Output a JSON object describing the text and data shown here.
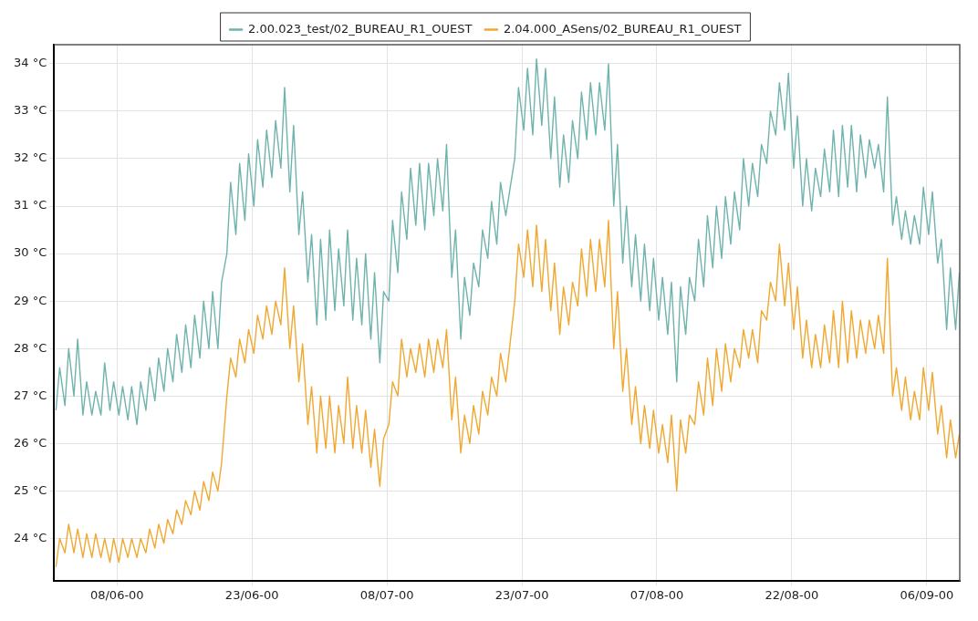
{
  "chart_data": {
    "type": "line",
    "legend": "top",
    "grid": true,
    "marker": "none",
    "line_style": "solid",
    "xlim": [
      "2000-06-01T00:00",
      "2000-09-09T16:00"
    ],
    "xticks": [
      {
        "value": "2000-06-08",
        "label": "08/06-00"
      },
      {
        "value": "2000-06-23",
        "label": "23/06-00"
      },
      {
        "value": "2000-07-08",
        "label": "08/07-00"
      },
      {
        "value": "2000-07-23",
        "label": "23/07-00"
      },
      {
        "value": "2000-08-07",
        "label": "07/08-00"
      },
      {
        "value": "2000-08-22",
        "label": "22/08-00"
      },
      {
        "value": "2000-09-06",
        "label": "06/09-00"
      }
    ],
    "ylim": [
      23.1,
      34.4
    ],
    "yticks": [
      {
        "value": 24,
        "label": "24 °C"
      },
      {
        "value": 25,
        "label": "25 °C"
      },
      {
        "value": 26,
        "label": "26 °C"
      },
      {
        "value": 27,
        "label": "27 °C"
      },
      {
        "value": 28,
        "label": "28 °C"
      },
      {
        "value": 29,
        "label": "29 °C"
      },
      {
        "value": 30,
        "label": "30 °C"
      },
      {
        "value": 31,
        "label": "31 °C"
      },
      {
        "value": 32,
        "label": "32 °C"
      },
      {
        "value": 33,
        "label": "33 °C"
      },
      {
        "value": 34,
        "label": "34 °C"
      }
    ],
    "x": [
      "2000-06-01T05:00",
      "2000-06-01T15:00",
      "2000-06-02T05:00",
      "2000-06-02T15:00",
      "2000-06-03T05:00",
      "2000-06-03T15:00",
      "2000-06-04T05:00",
      "2000-06-04T15:00",
      "2000-06-05T05:00",
      "2000-06-05T15:00",
      "2000-06-06T05:00",
      "2000-06-06T15:00",
      "2000-06-07T05:00",
      "2000-06-07T15:00",
      "2000-06-08T05:00",
      "2000-06-08T15:00",
      "2000-06-09T05:00",
      "2000-06-09T15:00",
      "2000-06-10T05:00",
      "2000-06-10T15:00",
      "2000-06-11T05:00",
      "2000-06-11T15:00",
      "2000-06-12T05:00",
      "2000-06-12T15:00",
      "2000-06-13T05:00",
      "2000-06-13T15:00",
      "2000-06-14T05:00",
      "2000-06-14T15:00",
      "2000-06-15T05:00",
      "2000-06-15T15:00",
      "2000-06-16T05:00",
      "2000-06-16T15:00",
      "2000-06-17T05:00",
      "2000-06-17T15:00",
      "2000-06-18T05:00",
      "2000-06-18T15:00",
      "2000-06-19T05:00",
      "2000-06-19T15:00",
      "2000-06-20T05:00",
      "2000-06-20T15:00",
      "2000-06-21T05:00",
      "2000-06-21T15:00",
      "2000-06-22T05:00",
      "2000-06-22T15:00",
      "2000-06-23T05:00",
      "2000-06-23T15:00",
      "2000-06-24T05:00",
      "2000-06-24T15:00",
      "2000-06-25T05:00",
      "2000-06-25T15:00",
      "2000-06-26T05:00",
      "2000-06-26T15:00",
      "2000-06-27T05:00",
      "2000-06-27T15:00",
      "2000-06-28T05:00",
      "2000-06-28T15:00",
      "2000-06-29T05:00",
      "2000-06-29T15:00",
      "2000-06-30T05:00",
      "2000-06-30T15:00",
      "2000-07-01T05:00",
      "2000-07-01T15:00",
      "2000-07-02T05:00",
      "2000-07-02T15:00",
      "2000-07-03T05:00",
      "2000-07-03T15:00",
      "2000-07-04T05:00",
      "2000-07-04T15:00",
      "2000-07-05T05:00",
      "2000-07-05T15:00",
      "2000-07-06T05:00",
      "2000-07-06T15:00",
      "2000-07-07T05:00",
      "2000-07-07T15:00",
      "2000-07-08T05:00",
      "2000-07-08T15:00",
      "2000-07-09T05:00",
      "2000-07-09T15:00",
      "2000-07-10T05:00",
      "2000-07-10T15:00",
      "2000-07-11T05:00",
      "2000-07-11T15:00",
      "2000-07-12T05:00",
      "2000-07-12T15:00",
      "2000-07-13T05:00",
      "2000-07-13T15:00",
      "2000-07-14T05:00",
      "2000-07-14T15:00",
      "2000-07-15T05:00",
      "2000-07-15T15:00",
      "2000-07-16T05:00",
      "2000-07-16T15:00",
      "2000-07-17T05:00",
      "2000-07-17T15:00",
      "2000-07-18T05:00",
      "2000-07-18T15:00",
      "2000-07-19T05:00",
      "2000-07-19T15:00",
      "2000-07-20T05:00",
      "2000-07-20T15:00",
      "2000-07-21T05:00",
      "2000-07-21T15:00",
      "2000-07-22T05:00",
      "2000-07-22T15:00",
      "2000-07-23T05:00",
      "2000-07-23T15:00",
      "2000-07-24T05:00",
      "2000-07-24T15:00",
      "2000-07-25T05:00",
      "2000-07-25T15:00",
      "2000-07-26T05:00",
      "2000-07-26T15:00",
      "2000-07-27T05:00",
      "2000-07-27T15:00",
      "2000-07-28T05:00",
      "2000-07-28T15:00",
      "2000-07-29T05:00",
      "2000-07-29T15:00",
      "2000-07-30T05:00",
      "2000-07-30T15:00",
      "2000-07-31T05:00",
      "2000-07-31T15:00",
      "2000-08-01T05:00",
      "2000-08-01T15:00",
      "2000-08-02T05:00",
      "2000-08-02T15:00",
      "2000-08-03T05:00",
      "2000-08-03T15:00",
      "2000-08-04T05:00",
      "2000-08-04T15:00",
      "2000-08-05T05:00",
      "2000-08-05T15:00",
      "2000-08-06T05:00",
      "2000-08-06T15:00",
      "2000-08-07T05:00",
      "2000-08-07T15:00",
      "2000-08-08T05:00",
      "2000-08-08T15:00",
      "2000-08-09T05:00",
      "2000-08-09T15:00",
      "2000-08-10T05:00",
      "2000-08-10T15:00",
      "2000-08-11T05:00",
      "2000-08-11T15:00",
      "2000-08-12T05:00",
      "2000-08-12T15:00",
      "2000-08-13T05:00",
      "2000-08-13T15:00",
      "2000-08-14T05:00",
      "2000-08-14T15:00",
      "2000-08-15T05:00",
      "2000-08-15T15:00",
      "2000-08-16T05:00",
      "2000-08-16T15:00",
      "2000-08-17T05:00",
      "2000-08-17T15:00",
      "2000-08-18T05:00",
      "2000-08-18T15:00",
      "2000-08-19T05:00",
      "2000-08-19T15:00",
      "2000-08-20T05:00",
      "2000-08-20T15:00",
      "2000-08-21T05:00",
      "2000-08-21T15:00",
      "2000-08-22T05:00",
      "2000-08-22T15:00",
      "2000-08-23T05:00",
      "2000-08-23T15:00",
      "2000-08-24T05:00",
      "2000-08-24T15:00",
      "2000-08-25T05:00",
      "2000-08-25T15:00",
      "2000-08-26T05:00",
      "2000-08-26T15:00",
      "2000-08-27T05:00",
      "2000-08-27T15:00",
      "2000-08-28T05:00",
      "2000-08-28T15:00",
      "2000-08-29T05:00",
      "2000-08-29T15:00",
      "2000-08-30T05:00",
      "2000-08-30T15:00",
      "2000-08-31T05:00",
      "2000-08-31T15:00",
      "2000-09-01T05:00",
      "2000-09-01T15:00",
      "2000-09-02T05:00",
      "2000-09-02T15:00",
      "2000-09-03T05:00",
      "2000-09-03T15:00",
      "2000-09-04T05:00",
      "2000-09-04T15:00",
      "2000-09-05T05:00",
      "2000-09-05T15:00",
      "2000-09-06T05:00",
      "2000-09-06T15:00",
      "2000-09-07T05:00",
      "2000-09-07T15:00",
      "2000-09-08T05:00",
      "2000-09-08T15:00",
      "2000-09-09T05:00",
      "2000-09-09T15:00"
    ],
    "series": [
      {
        "name": "2.00.023_test/02_BUREAU_R1_OUEST",
        "color": "#6fb3ad",
        "values": [
          26.7,
          27.6,
          26.8,
          28.0,
          27.0,
          28.2,
          26.6,
          27.3,
          26.6,
          27.1,
          26.6,
          27.7,
          26.7,
          27.3,
          26.6,
          27.2,
          26.5,
          27.2,
          26.4,
          27.3,
          26.7,
          27.6,
          26.9,
          27.8,
          27.1,
          28.0,
          27.3,
          28.3,
          27.5,
          28.5,
          27.6,
          28.7,
          27.8,
          29.0,
          28.0,
          29.2,
          28.0,
          29.4,
          30.0,
          31.5,
          30.4,
          31.9,
          30.7,
          32.1,
          31.0,
          32.4,
          31.4,
          32.6,
          31.6,
          32.8,
          31.8,
          33.5,
          31.3,
          32.7,
          30.4,
          31.3,
          29.4,
          30.4,
          28.5,
          30.3,
          28.6,
          30.5,
          28.8,
          30.1,
          28.9,
          30.5,
          28.6,
          29.9,
          28.5,
          30.0,
          28.2,
          29.6,
          27.7,
          29.2,
          29.0,
          30.7,
          29.6,
          31.3,
          30.3,
          31.8,
          30.6,
          31.9,
          30.5,
          31.9,
          30.8,
          32.0,
          30.9,
          32.3,
          29.5,
          30.5,
          28.2,
          29.5,
          28.7,
          29.8,
          29.3,
          30.5,
          29.9,
          31.1,
          30.2,
          31.5,
          30.8,
          31.3,
          32.0,
          33.5,
          32.6,
          33.9,
          32.5,
          34.1,
          32.7,
          33.9,
          32.0,
          33.3,
          31.4,
          32.5,
          31.5,
          32.8,
          32.0,
          33.4,
          32.4,
          33.6,
          32.5,
          33.6,
          32.6,
          34.0,
          31.0,
          32.3,
          29.8,
          31.0,
          29.3,
          30.4,
          29.0,
          30.2,
          28.8,
          29.9,
          28.6,
          29.5,
          28.3,
          29.4,
          27.3,
          29.3,
          28.3,
          29.5,
          29.0,
          30.3,
          29.3,
          30.8,
          29.7,
          31.0,
          29.9,
          31.2,
          30.2,
          31.3,
          30.5,
          32.0,
          31.0,
          31.9,
          31.2,
          32.3,
          31.9,
          33.0,
          32.5,
          33.6,
          32.6,
          33.8,
          31.8,
          32.9,
          31.0,
          32.0,
          30.9,
          31.8,
          31.2,
          32.2,
          31.3,
          32.6,
          31.2,
          32.7,
          31.4,
          32.7,
          31.3,
          32.5,
          31.6,
          32.4,
          31.8,
          32.3,
          31.3,
          33.3,
          30.6,
          31.2,
          30.3,
          30.9,
          30.2,
          30.8,
          30.2,
          31.4,
          30.4,
          31.3,
          29.8,
          30.3,
          28.4,
          29.7,
          28.4,
          29.6
        ]
      },
      {
        "name": "2.04.000_ASens/02_BUREAU_R1_OUEST",
        "color": "#f0a830",
        "values": [
          23.4,
          24.0,
          23.7,
          24.3,
          23.7,
          24.2,
          23.6,
          24.1,
          23.6,
          24.1,
          23.6,
          24.0,
          23.5,
          24.0,
          23.5,
          24.0,
          23.6,
          24.0,
          23.6,
          24.0,
          23.7,
          24.2,
          23.8,
          24.3,
          23.9,
          24.4,
          24.1,
          24.6,
          24.3,
          24.8,
          24.5,
          25.0,
          24.6,
          25.2,
          24.8,
          25.4,
          25.0,
          25.6,
          27.0,
          27.8,
          27.4,
          28.2,
          27.7,
          28.4,
          27.9,
          28.7,
          28.2,
          28.9,
          28.3,
          29.0,
          28.5,
          29.7,
          28.0,
          28.9,
          27.3,
          28.1,
          26.4,
          27.2,
          25.8,
          27.0,
          25.9,
          27.0,
          25.8,
          26.8,
          26.0,
          27.4,
          25.9,
          26.8,
          25.8,
          26.7,
          25.5,
          26.3,
          25.1,
          26.1,
          26.4,
          27.3,
          27.0,
          28.2,
          27.4,
          28.0,
          27.5,
          28.1,
          27.4,
          28.2,
          27.5,
          28.2,
          27.6,
          28.4,
          26.5,
          27.4,
          25.8,
          26.6,
          26.0,
          26.8,
          26.2,
          27.1,
          26.6,
          27.4,
          27.0,
          27.9,
          27.3,
          28.0,
          29.0,
          30.2,
          29.5,
          30.5,
          29.3,
          30.6,
          29.2,
          30.3,
          28.8,
          29.8,
          28.3,
          29.3,
          28.5,
          29.4,
          28.9,
          30.1,
          29.1,
          30.3,
          29.2,
          30.3,
          29.3,
          30.7,
          28.0,
          29.2,
          27.1,
          28.0,
          26.4,
          27.2,
          26.0,
          26.8,
          25.9,
          26.7,
          25.8,
          26.4,
          25.6,
          26.6,
          25.0,
          26.5,
          25.8,
          26.6,
          26.4,
          27.3,
          26.6,
          27.8,
          26.8,
          28.0,
          27.1,
          28.1,
          27.3,
          28.0,
          27.6,
          28.4,
          27.8,
          28.4,
          27.7,
          28.8,
          28.6,
          29.4,
          29.0,
          30.2,
          28.9,
          29.8,
          28.4,
          29.3,
          27.8,
          28.6,
          27.6,
          28.3,
          27.6,
          28.5,
          27.7,
          28.8,
          27.6,
          29.0,
          27.7,
          28.8,
          27.8,
          28.6,
          27.9,
          28.6,
          28.0,
          28.7,
          27.9,
          29.9,
          27.0,
          27.6,
          26.7,
          27.4,
          26.5,
          27.1,
          26.5,
          27.6,
          26.7,
          27.5,
          26.2,
          26.8,
          25.7,
          26.5,
          25.7,
          26.2
        ]
      }
    ]
  }
}
